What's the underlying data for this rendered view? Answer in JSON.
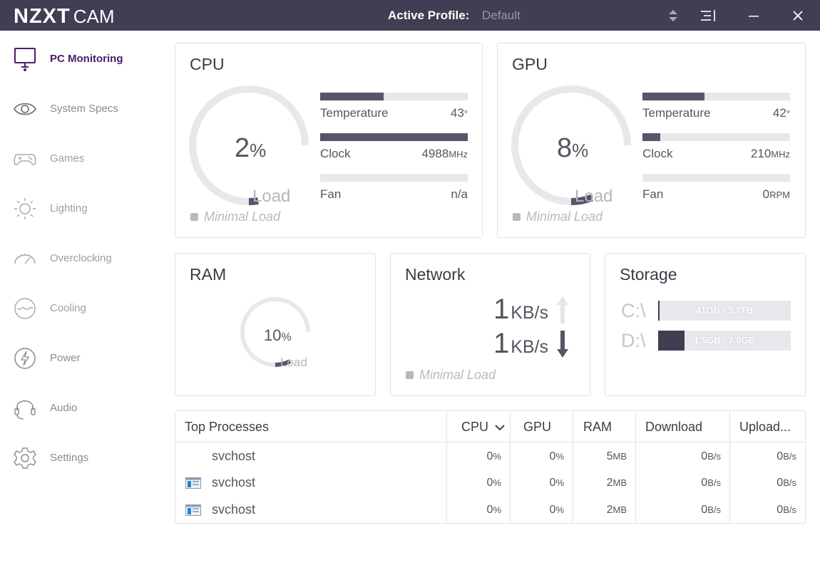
{
  "titlebar": {
    "brand": "NZXT",
    "product": "CAM",
    "profile_label": "Active Profile:",
    "profile_value": "Default"
  },
  "sidebar": {
    "items": [
      {
        "label": "PC Monitoring",
        "icon": "monitor-icon",
        "active": true
      },
      {
        "label": "System Specs",
        "icon": "eye-icon"
      },
      {
        "label": "Games",
        "icon": "gamepad-icon"
      },
      {
        "label": "Lighting",
        "icon": "sun-icon"
      },
      {
        "label": "Overclocking",
        "icon": "speedometer-icon"
      },
      {
        "label": "Cooling",
        "icon": "cooling-icon"
      },
      {
        "label": "Power",
        "icon": "lightning-icon"
      },
      {
        "label": "Audio",
        "icon": "headset-icon"
      },
      {
        "label": "Settings",
        "icon": "gear-icon"
      }
    ]
  },
  "cpu": {
    "title": "CPU",
    "load_value": "2",
    "load_unit": "%",
    "load_fraction": 0.02,
    "load_label": "Load",
    "status": "Minimal Load",
    "temperature": {
      "label": "Temperature",
      "value": "43",
      "unit": "°",
      "level": 0.43
    },
    "clock": {
      "label": "Clock",
      "value": "4988",
      "unit": "MHz",
      "level": 1.0
    },
    "fan": {
      "label": "Fan",
      "value": "n/a",
      "unit": "",
      "level": 0
    }
  },
  "gpu": {
    "title": "GPU",
    "load_value": "8",
    "load_unit": "%",
    "load_fraction": 0.08,
    "load_label": "Load",
    "status": "Minimal Load",
    "temperature": {
      "label": "Temperature",
      "value": "42",
      "unit": "°",
      "level": 0.42
    },
    "clock": {
      "label": "Clock",
      "value": "210",
      "unit": "MHz",
      "level": 0.12
    },
    "fan": {
      "label": "Fan",
      "value": "0",
      "unit": "RPM",
      "level": 0
    }
  },
  "ram": {
    "title": "RAM",
    "load_value": "10",
    "load_unit": "%",
    "load_fraction": 0.1,
    "load_label": "Load"
  },
  "network": {
    "title": "Network",
    "upload_value": "1",
    "upload_unit": "KB/s",
    "download_value": "1",
    "download_unit": "KB/s",
    "status": "Minimal Load"
  },
  "storage": {
    "title": "Storage",
    "drives": [
      {
        "letter": "C:\\",
        "usage": "41GB / 3.7TB",
        "fraction": 0.011
      },
      {
        "letter": "D:\\",
        "usage": "1.5GB / 7.6GB",
        "fraction": 0.2
      }
    ]
  },
  "processes": {
    "headers": {
      "name": "Top Processes",
      "cpu": "CPU",
      "gpu": "GPU",
      "ram": "RAM",
      "download": "Download",
      "upload": "Upload..."
    },
    "rows": [
      {
        "name": "svchost",
        "icon": false,
        "cpu": "0",
        "cpu_u": "%",
        "gpu": "0",
        "gpu_u": "%",
        "ram": "5",
        "ram_u": "MB",
        "download": "0",
        "download_u": "B/s",
        "upload": "0",
        "upload_u": "B/s"
      },
      {
        "name": "svchost",
        "icon": true,
        "cpu": "0",
        "cpu_u": "%",
        "gpu": "0",
        "gpu_u": "%",
        "ram": "2",
        "ram_u": "MB",
        "download": "0",
        "download_u": "B/s",
        "upload": "0",
        "upload_u": "B/s"
      },
      {
        "name": "svchost",
        "icon": true,
        "cpu": "0",
        "cpu_u": "%",
        "gpu": "0",
        "gpu_u": "%",
        "ram": "2",
        "ram_u": "MB",
        "download": "0",
        "download_u": "B/s",
        "upload": "0",
        "upload_u": "B/s"
      }
    ]
  },
  "colors": {
    "titlebar": "#3f3e53",
    "accent": "#4a1d6b",
    "bar_fill": "#56556a",
    "bar_track": "#e8e8ec"
  }
}
